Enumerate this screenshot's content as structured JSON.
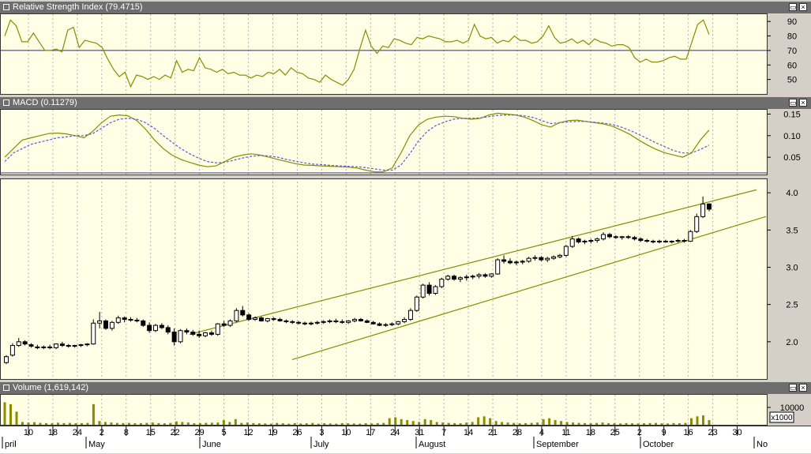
{
  "window": {
    "min_icon": "minimize-icon",
    "close_icon": "close-icon"
  },
  "colors": {
    "title_bg": "#6e6e6e",
    "plot_bg": "#ffffe6",
    "indicator": "#8b8b00",
    "signal": "#5a5ad2",
    "rsi_level": "#2b2b8c",
    "volume_bar": "#8b8b00"
  },
  "chart_data": [
    {
      "type": "line",
      "title": "Relative Strength Index (79.4715)",
      "ylim": [
        40,
        95
      ],
      "yticks": [
        "90",
        "80",
        "70",
        "60",
        "50"
      ],
      "reference_line": 70,
      "series": [
        {
          "values": [
            80,
            91,
            87,
            76,
            76,
            82,
            76,
            70,
            70,
            71,
            69,
            84,
            86,
            72,
            77,
            76,
            75,
            72,
            64,
            57,
            52,
            55,
            45,
            53,
            52,
            50,
            52,
            50,
            53,
            51,
            63,
            55,
            57,
            56,
            65,
            58,
            57,
            55,
            57,
            54,
            55,
            53,
            53,
            51,
            53,
            52,
            55,
            54,
            57,
            53,
            58,
            55,
            54,
            51,
            50,
            48,
            53,
            50,
            48,
            46,
            50,
            57,
            71,
            84,
            73,
            68,
            73,
            72,
            78,
            77,
            75,
            74,
            79,
            78,
            80,
            79,
            78,
            76,
            76,
            77,
            75,
            77,
            88,
            80,
            78,
            79,
            75,
            77,
            76,
            80,
            77,
            77,
            75,
            76,
            80,
            87,
            79,
            75,
            76,
            78,
            75,
            77,
            74,
            78,
            76,
            75,
            73,
            74,
            74,
            72,
            65,
            62,
            64,
            62,
            62,
            63,
            65,
            66,
            64,
            64,
            76,
            88,
            91,
            81
          ]
        }
      ]
    },
    {
      "type": "line",
      "title": "MACD (0.11279)",
      "ylim": [
        0.01,
        0.16
      ],
      "yticks": [
        "0.15",
        "0.10",
        "0.05"
      ],
      "series": [
        {
          "values": [
            0.05,
            0.07,
            0.09,
            0.095,
            0.1,
            0.105,
            0.106,
            0.104,
            0.1,
            0.095,
            0.11,
            0.13,
            0.145,
            0.148,
            0.146,
            0.135,
            0.115,
            0.09,
            0.07,
            0.055,
            0.045,
            0.038,
            0.032,
            0.028,
            0.03,
            0.04,
            0.05,
            0.055,
            0.058,
            0.055,
            0.05,
            0.045,
            0.04,
            0.035,
            0.032,
            0.031,
            0.03,
            0.029,
            0.028,
            0.027,
            0.025,
            0.02,
            0.016,
            0.016,
            0.025,
            0.06,
            0.1,
            0.125,
            0.138,
            0.143,
            0.145,
            0.144,
            0.14,
            0.138,
            0.14,
            0.148,
            0.152,
            0.15,
            0.148,
            0.143,
            0.135,
            0.125,
            0.12,
            0.13,
            0.135,
            0.136,
            0.133,
            0.13,
            0.127,
            0.122,
            0.113,
            0.103,
            0.09,
            0.078,
            0.068,
            0.06,
            0.055,
            0.05,
            0.06,
            0.09,
            0.113
          ]
        },
        {
          "values": [
            0.04,
            0.06,
            0.07,
            0.08,
            0.085,
            0.09,
            0.095,
            0.097,
            0.1,
            0.1,
            0.105,
            0.117,
            0.13,
            0.138,
            0.14,
            0.138,
            0.13,
            0.117,
            0.1,
            0.085,
            0.07,
            0.058,
            0.048,
            0.04,
            0.037,
            0.038,
            0.043,
            0.048,
            0.052,
            0.054,
            0.053,
            0.05,
            0.045,
            0.041,
            0.037,
            0.034,
            0.033,
            0.031,
            0.03,
            0.029,
            0.028,
            0.026,
            0.023,
            0.02,
            0.02,
            0.032,
            0.058,
            0.088,
            0.11,
            0.124,
            0.132,
            0.138,
            0.14,
            0.14,
            0.141,
            0.144,
            0.147,
            0.148,
            0.148,
            0.146,
            0.142,
            0.135,
            0.128,
            0.13,
            0.132,
            0.133,
            0.133,
            0.131,
            0.129,
            0.126,
            0.12,
            0.112,
            0.103,
            0.093,
            0.083,
            0.074,
            0.065,
            0.06,
            0.06,
            0.068,
            0.078
          ]
        }
      ]
    },
    {
      "type": "candlestick",
      "ylim": [
        1.5,
        4.15
      ],
      "yticks": [
        "4.0",
        "3.5",
        "3.0",
        "2.5",
        "2.0"
      ],
      "candles": [
        [
          1.72,
          1.82,
          1.7,
          1.8
        ],
        [
          1.82,
          1.98,
          1.8,
          1.95
        ],
        [
          1.95,
          2.05,
          1.93,
          2.0
        ],
        [
          2.0,
          2.02,
          1.95,
          1.97
        ],
        [
          1.96,
          1.98,
          1.92,
          1.94
        ],
        [
          1.93,
          1.96,
          1.9,
          1.92
        ],
        [
          1.92,
          1.95,
          1.9,
          1.93
        ],
        [
          1.93,
          1.96,
          1.9,
          1.92
        ],
        [
          1.92,
          1.98,
          1.9,
          1.97
        ],
        [
          1.97,
          2.0,
          1.93,
          1.95
        ],
        [
          1.95,
          1.97,
          1.92,
          1.94
        ],
        [
          1.94,
          1.96,
          1.92,
          1.95
        ],
        [
          1.95,
          1.97,
          1.93,
          1.96
        ],
        [
          1.96,
          1.98,
          1.94,
          1.97
        ],
        [
          1.97,
          2.3,
          1.96,
          2.25
        ],
        [
          2.25,
          2.4,
          2.18,
          2.28
        ],
        [
          2.28,
          2.3,
          2.16,
          2.18
        ],
        [
          2.18,
          2.28,
          2.15,
          2.26
        ],
        [
          2.26,
          2.35,
          2.24,
          2.32
        ],
        [
          2.32,
          2.34,
          2.26,
          2.3
        ],
        [
          2.3,
          2.33,
          2.27,
          2.29
        ],
        [
          2.29,
          2.32,
          2.26,
          2.28
        ],
        [
          2.28,
          2.3,
          2.2,
          2.22
        ],
        [
          2.22,
          2.26,
          2.12,
          2.15
        ],
        [
          2.15,
          2.24,
          2.13,
          2.22
        ],
        [
          2.22,
          2.25,
          2.17,
          2.19
        ],
        [
          2.19,
          2.22,
          2.1,
          2.13
        ],
        [
          2.13,
          2.18,
          1.95,
          2.0
        ],
        [
          2.0,
          2.17,
          1.98,
          2.15
        ],
        [
          2.15,
          2.18,
          2.1,
          2.13
        ],
        [
          2.13,
          2.16,
          2.08,
          2.1
        ],
        [
          2.1,
          2.15,
          2.05,
          2.08
        ],
        [
          2.08,
          2.13,
          2.06,
          2.12
        ],
        [
          2.12,
          2.15,
          2.08,
          2.1
        ],
        [
          2.1,
          2.25,
          2.08,
          2.24
        ],
        [
          2.24,
          2.28,
          2.2,
          2.22
        ],
        [
          2.22,
          2.3,
          2.2,
          2.28
        ],
        [
          2.28,
          2.45,
          2.26,
          2.42
        ],
        [
          2.42,
          2.48,
          2.34,
          2.36
        ],
        [
          2.36,
          2.38,
          2.28,
          2.3
        ],
        [
          2.3,
          2.34,
          2.28,
          2.32
        ],
        [
          2.32,
          2.34,
          2.27,
          2.28
        ],
        [
          2.28,
          2.32,
          2.26,
          2.31
        ],
        [
          2.31,
          2.33,
          2.28,
          2.3
        ],
        [
          2.3,
          2.32,
          2.27,
          2.28
        ],
        [
          2.28,
          2.3,
          2.25,
          2.27
        ],
        [
          2.27,
          2.29,
          2.24,
          2.26
        ],
        [
          2.26,
          2.28,
          2.23,
          2.25
        ],
        [
          2.25,
          2.27,
          2.22,
          2.24
        ],
        [
          2.24,
          2.27,
          2.22,
          2.25
        ],
        [
          2.25,
          2.28,
          2.23,
          2.26
        ],
        [
          2.26,
          2.29,
          2.24,
          2.27
        ],
        [
          2.27,
          2.3,
          2.25,
          2.28
        ],
        [
          2.28,
          2.31,
          2.25,
          2.27
        ],
        [
          2.27,
          2.3,
          2.24,
          2.26
        ],
        [
          2.26,
          2.29,
          2.24,
          2.28
        ],
        [
          2.28,
          2.32,
          2.26,
          2.3
        ],
        [
          2.3,
          2.32,
          2.27,
          2.28
        ],
        [
          2.28,
          2.3,
          2.25,
          2.26
        ],
        [
          2.26,
          2.28,
          2.23,
          2.24
        ],
        [
          2.24,
          2.26,
          2.21,
          2.22
        ],
        [
          2.22,
          2.25,
          2.2,
          2.23
        ],
        [
          2.23,
          2.26,
          2.21,
          2.24
        ],
        [
          2.24,
          2.28,
          2.22,
          2.27
        ],
        [
          2.27,
          2.33,
          2.25,
          2.3
        ],
        [
          2.3,
          2.45,
          2.28,
          2.42
        ],
        [
          2.42,
          2.62,
          2.4,
          2.6
        ],
        [
          2.6,
          2.78,
          2.58,
          2.76
        ],
        [
          2.76,
          2.8,
          2.62,
          2.65
        ],
        [
          2.65,
          2.76,
          2.63,
          2.74
        ],
        [
          2.74,
          2.86,
          2.72,
          2.84
        ],
        [
          2.84,
          2.9,
          2.82,
          2.88
        ],
        [
          2.88,
          2.9,
          2.82,
          2.84
        ],
        [
          2.84,
          2.88,
          2.8,
          2.86
        ],
        [
          2.86,
          2.9,
          2.82,
          2.87
        ],
        [
          2.87,
          2.9,
          2.84,
          2.88
        ],
        [
          2.88,
          2.92,
          2.85,
          2.9
        ],
        [
          2.9,
          2.92,
          2.86,
          2.88
        ],
        [
          2.88,
          2.92,
          2.86,
          2.91
        ],
        [
          2.91,
          3.12,
          2.9,
          3.1
        ],
        [
          3.1,
          3.16,
          3.05,
          3.08
        ],
        [
          3.08,
          3.12,
          3.04,
          3.06
        ],
        [
          3.06,
          3.09,
          3.03,
          3.07
        ],
        [
          3.07,
          3.1,
          3.04,
          3.08
        ],
        [
          3.08,
          3.14,
          3.06,
          3.12
        ],
        [
          3.12,
          3.16,
          3.09,
          3.13
        ],
        [
          3.13,
          3.15,
          3.08,
          3.1
        ],
        [
          3.1,
          3.14,
          3.07,
          3.12
        ],
        [
          3.12,
          3.16,
          3.1,
          3.14
        ],
        [
          3.14,
          3.18,
          3.12,
          3.16
        ],
        [
          3.16,
          3.3,
          3.14,
          3.28
        ],
        [
          3.28,
          3.42,
          3.26,
          3.38
        ],
        [
          3.38,
          3.4,
          3.32,
          3.34
        ],
        [
          3.34,
          3.37,
          3.31,
          3.35
        ],
        [
          3.35,
          3.38,
          3.32,
          3.36
        ],
        [
          3.36,
          3.4,
          3.33,
          3.38
        ],
        [
          3.38,
          3.47,
          3.36,
          3.44
        ],
        [
          3.44,
          3.46,
          3.39,
          3.41
        ],
        [
          3.41,
          3.43,
          3.38,
          3.4
        ],
        [
          3.4,
          3.42,
          3.37,
          3.41
        ],
        [
          3.41,
          3.43,
          3.38,
          3.4
        ],
        [
          3.4,
          3.42,
          3.36,
          3.38
        ],
        [
          3.38,
          3.4,
          3.34,
          3.36
        ],
        [
          3.36,
          3.38,
          3.33,
          3.35
        ],
        [
          3.35,
          3.37,
          3.32,
          3.34
        ],
        [
          3.34,
          3.37,
          3.32,
          3.35
        ],
        [
          3.35,
          3.37,
          3.33,
          3.34
        ],
        [
          3.34,
          3.36,
          3.32,
          3.35
        ],
        [
          3.35,
          3.38,
          3.33,
          3.36
        ],
        [
          3.36,
          3.38,
          3.33,
          3.35
        ],
        [
          3.35,
          3.5,
          3.34,
          3.48
        ],
        [
          3.48,
          3.72,
          3.46,
          3.68
        ],
        [
          3.68,
          3.95,
          3.66,
          3.85
        ],
        [
          3.85,
          3.86,
          3.75,
          3.78
        ]
      ],
      "channel": [
        {
          "x": [
            58,
            191
          ],
          "y": [
            2.1,
            4.04
          ]
        },
        {
          "x": [
            58,
            191
          ],
          "y": [
            1.76,
            3.68
          ]
        }
      ]
    },
    {
      "type": "bar",
      "title": "Volume (1,619,142)",
      "yticks": [
        "10000"
      ],
      "unit": "x1000",
      "values": [
        1200,
        1100,
        700,
        150,
        120,
        140,
        100,
        90,
        80,
        110,
        90,
        100,
        80,
        90,
        100,
        1100,
        200,
        150,
        120,
        100,
        90,
        100,
        80,
        90,
        100,
        120,
        90,
        80,
        100,
        180,
        150,
        120,
        80,
        90,
        100,
        110,
        120,
        250,
        150,
        300,
        100,
        120,
        90,
        80,
        70,
        60,
        100,
        80,
        60,
        90,
        70,
        80,
        100,
        60,
        80,
        70,
        60,
        90,
        80,
        70,
        60,
        80,
        70,
        90,
        100,
        350,
        400,
        300,
        250,
        200,
        150,
        300,
        250,
        150,
        120,
        100,
        90,
        80,
        120,
        150,
        400,
        450,
        350,
        200,
        150,
        120,
        100,
        80,
        90,
        100,
        120,
        300,
        350,
        250,
        200,
        150,
        120,
        100,
        90,
        80,
        100,
        120,
        90,
        80,
        70,
        90,
        80,
        70,
        80,
        90,
        100,
        80,
        70,
        90,
        80,
        100,
        350,
        450,
        500,
        250
      ],
      "ylim": [
        0,
        1600
      ]
    }
  ],
  "x_axis": {
    "day_labels": [
      "10",
      "18",
      "24",
      "2",
      "8",
      "15",
      "22",
      "29",
      "5",
      "12",
      "19",
      "26",
      "3",
      "10",
      "17",
      "24",
      "31",
      "7",
      "14",
      "21",
      "28",
      "4",
      "11",
      "18",
      "25",
      "2",
      "9",
      "16",
      "23",
      "30"
    ],
    "month_labels": [
      "pril",
      "May",
      "June",
      "July",
      "August",
      "September",
      "October",
      "No"
    ]
  }
}
